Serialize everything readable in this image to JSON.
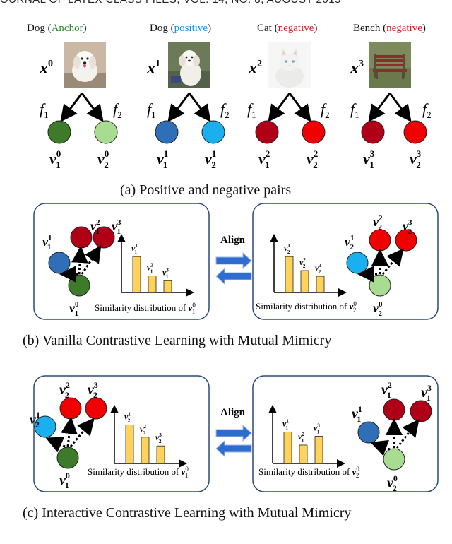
{
  "header": {
    "text": "OURNAL OF LATEX CLASS FILES, VOL. 14, NO. 8, AUGUST 2015"
  },
  "pairs": [
    {
      "word": "Dog",
      "role": "Anchor",
      "role_color": "#2f8f2f",
      "var": "x",
      "sup": "0",
      "img": "dog-photo"
    },
    {
      "word": "Dog",
      "role": "positive",
      "role_color": "#1a8fe0",
      "var": "x",
      "sup": "1",
      "img": "dog-photo"
    },
    {
      "word": "Cat",
      "role": "negative",
      "role_color": "#e01a1a",
      "var": "x",
      "sup": "2",
      "img": "cat-photo"
    },
    {
      "word": "Bench",
      "role": "negative",
      "role_color": "#e01a1a",
      "var": "x",
      "sup": "3",
      "img": "bench-photo"
    }
  ],
  "functions": {
    "f1": "f",
    "f1_sub": "1",
    "f2": "f",
    "f2_sub": "2"
  },
  "vectors_top": [
    {
      "v1": "v",
      "v1_sub": "1",
      "v1_sup": "0",
      "v2": "v",
      "v2_sub": "2",
      "v2_sup": "0",
      "c1": "#3d7a2a",
      "c2": "#a8dc90"
    },
    {
      "v1": "v",
      "v1_sub": "1",
      "v1_sup": "1",
      "v2": "v",
      "v2_sub": "2",
      "v2_sup": "1",
      "c1": "#2e6fb8",
      "c2": "#1ab0f0"
    },
    {
      "v1": "v",
      "v1_sub": "1",
      "v1_sup": "2",
      "v2": "v",
      "v2_sub": "2",
      "v2_sup": "2",
      "c1": "#b00018",
      "c2": "#f00000"
    },
    {
      "v1": "v",
      "v1_sub": "1",
      "v1_sup": "3",
      "v2": "v",
      "v2_sub": "2",
      "v2_sup": "3",
      "c1": "#b00018",
      "c2": "#f00000"
    }
  ],
  "captions": {
    "a": "(a) Positive and negative pairs",
    "b": "(b) Vanilla Contrastive Learning with Mutual Mimicry",
    "c": "(c) Interactive Contrastive Learning with Mutual Mimicry"
  },
  "panels": {
    "align_label": "Align",
    "sim_prefix": "Similarity distribution of",
    "b_left": {
      "bars": [
        0.82,
        0.38,
        0.27
      ],
      "bar_labels_sub": "1",
      "anchor_sub": "1",
      "sim_sub": "1"
    },
    "b_right": {
      "bars": [
        0.82,
        0.5,
        0.37
      ],
      "bar_labels_sub": "2",
      "anchor_sub": "2",
      "sim_sub": "2"
    },
    "c_left": {
      "bars": [
        0.88,
        0.6,
        0.4
      ],
      "bar_labels_sub": "2",
      "anchor_sub": "1",
      "sim_sub": "1"
    },
    "c_right": {
      "bars": [
        0.72,
        0.42,
        0.62
      ],
      "bar_labels_sub": "1",
      "anchor_sub": "2",
      "sim_sub": "2"
    },
    "sup_labels": [
      "1",
      "2",
      "3"
    ],
    "anchor_sup": "0",
    "bar_color": "#ffd25a"
  }
}
